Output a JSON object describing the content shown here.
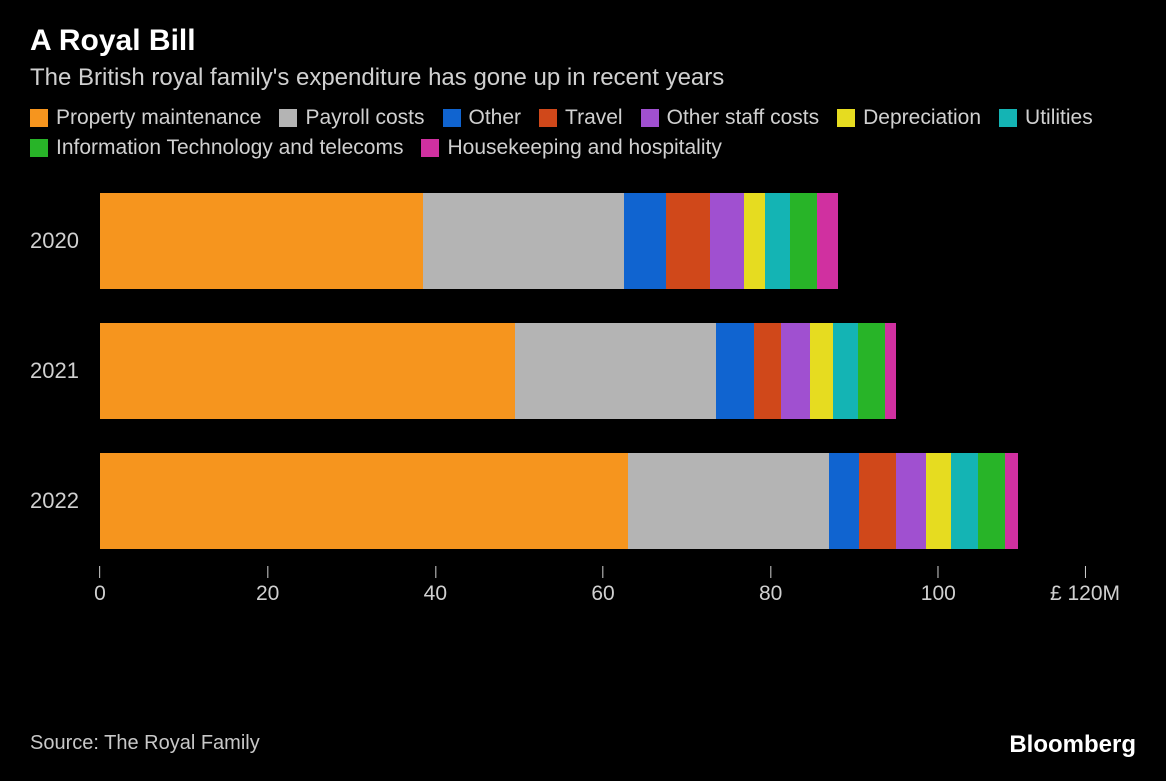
{
  "header": {
    "title": "A Royal Bill",
    "subtitle": "The British royal family's expenditure has gone up in recent years"
  },
  "chart": {
    "type": "stacked_bar_horizontal",
    "background_color": "#000000",
    "text_color": "#d0d0d0",
    "title_fontsize": 30,
    "subtitle_fontsize": 24,
    "legend_fontsize": 21,
    "label_fontsize": 22,
    "xmax": 120,
    "xticks": [
      0,
      20,
      40,
      60,
      80,
      100
    ],
    "xtick_final_label": "£ 120M",
    "series": [
      {
        "key": "property_maintenance",
        "label": "Property maintenance",
        "color": "#f6951e"
      },
      {
        "key": "payroll_costs",
        "label": "Payroll costs",
        "color": "#b4b4b4"
      },
      {
        "key": "other",
        "label": "Other",
        "color": "#1064d0"
      },
      {
        "key": "travel",
        "label": "Travel",
        "color": "#d0481a"
      },
      {
        "key": "other_staff_costs",
        "label": "Other staff costs",
        "color": "#a050d0"
      },
      {
        "key": "depreciation",
        "label": "Depreciation",
        "color": "#e6dc20"
      },
      {
        "key": "utilities",
        "label": "Utilities",
        "color": "#14b4b4"
      },
      {
        "key": "it_telecoms",
        "label": "Information Technology and telecoms",
        "color": "#28b428"
      },
      {
        "key": "housekeeping",
        "label": "Housekeeping and hospitality",
        "color": "#d030a0"
      }
    ],
    "rows": [
      {
        "year": "2020",
        "values": {
          "property_maintenance": 38.5,
          "payroll_costs": 24.0,
          "other": 5.0,
          "travel": 5.3,
          "other_staff_costs": 4.0,
          "depreciation": 2.5,
          "utilities": 3.0,
          "it_telecoms": 3.2,
          "housekeeping": 2.5
        }
      },
      {
        "year": "2021",
        "values": {
          "property_maintenance": 49.5,
          "payroll_costs": 24.0,
          "other": 4.5,
          "travel": 3.2,
          "other_staff_costs": 3.5,
          "depreciation": 2.7,
          "utilities": 3.0,
          "it_telecoms": 3.2,
          "housekeeping": 1.4
        }
      },
      {
        "year": "2022",
        "values": {
          "property_maintenance": 63.0,
          "payroll_costs": 24.0,
          "other": 3.5,
          "travel": 4.5,
          "other_staff_costs": 3.5,
          "depreciation": 3.0,
          "utilities": 3.2,
          "it_telecoms": 3.3,
          "housekeeping": 1.5
        }
      }
    ]
  },
  "footer": {
    "source": "Source: The Royal Family",
    "brand": "Bloomberg"
  }
}
